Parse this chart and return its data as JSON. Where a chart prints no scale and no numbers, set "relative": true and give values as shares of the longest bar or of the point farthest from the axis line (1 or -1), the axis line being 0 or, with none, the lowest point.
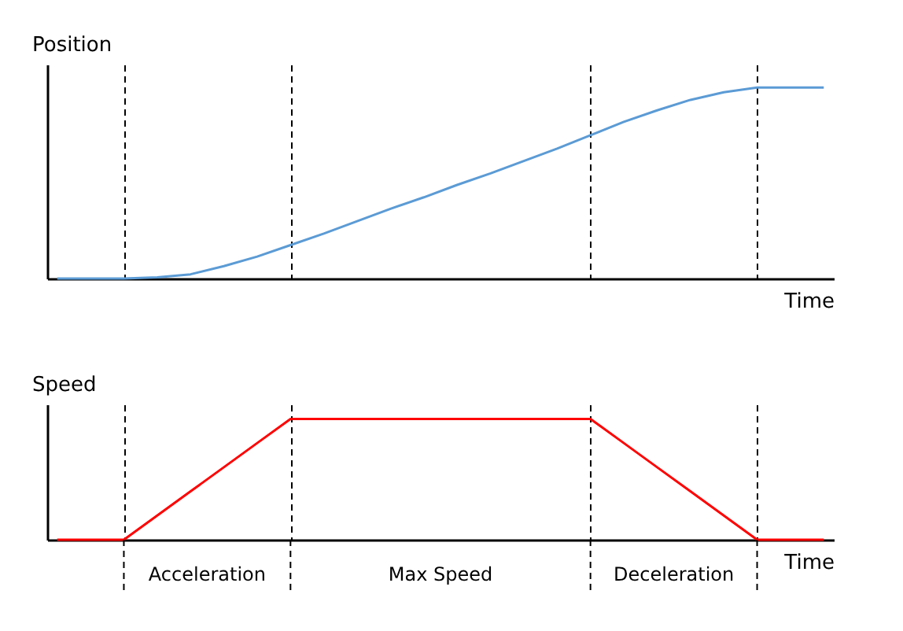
{
  "chart_data": [
    {
      "type": "line",
      "ylabel": "Position",
      "xlabel": "Time",
      "relative": true,
      "tick_labels": false,
      "grid": "x",
      "legend": false,
      "marker": "none",
      "line_style": "solid",
      "categories": [
        null,
        null,
        null,
        null,
        null,
        null,
        null,
        null,
        null,
        null,
        null,
        null,
        null,
        null,
        null,
        null,
        null,
        null,
        null,
        null,
        null,
        null,
        null,
        null
      ],
      "series": [
        {
          "color": "#5b9bd5",
          "values": [
            0,
            0,
            0,
            0.006,
            0.022,
            0.065,
            0.115,
            0.175,
            0.235,
            0.3,
            0.365,
            0.425,
            0.49,
            0.55,
            0.615,
            0.68,
            0.75,
            0.82,
            0.88,
            0.935,
            0.975,
            1,
            1,
            1
          ]
        }
      ]
    },
    {
      "type": "line",
      "ylabel": "Speed",
      "xlabel": "Time",
      "relative": true,
      "tick_labels": false,
      "grid": "x",
      "legend": false,
      "marker": "none",
      "line_style": "solid",
      "categories": [
        null,
        null,
        null,
        null,
        null,
        null,
        null,
        null,
        null,
        null,
        null,
        null,
        null,
        null,
        null,
        null,
        null,
        null,
        null,
        null,
        null,
        null,
        null,
        null
      ],
      "series": [
        {
          "color": "#ff0000",
          "values": [
            0,
            0,
            0,
            0.2,
            0.4,
            0.6,
            0.8,
            1,
            1,
            1,
            1,
            1,
            1,
            1,
            1,
            1,
            1,
            0.8,
            0.6,
            0.4,
            0.2,
            0,
            0,
            0
          ]
        }
      ],
      "annotations": [
        "Acceleration",
        "Max Speed",
        "Deceleration"
      ]
    }
  ]
}
